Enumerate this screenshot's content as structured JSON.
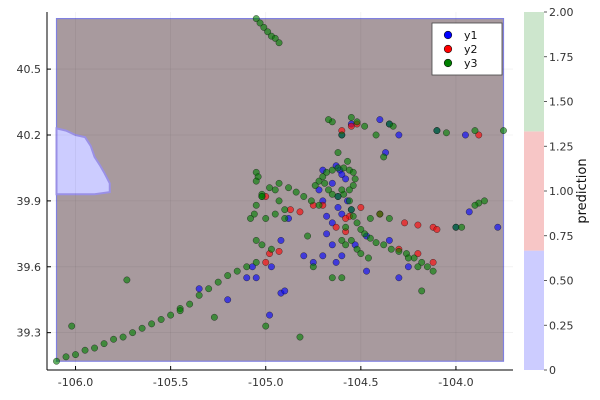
{
  "chart_data": {
    "type": "scatter",
    "title": "",
    "xlabel": "",
    "ylabel": "",
    "xlim": [
      -106.15,
      -103.7
    ],
    "ylim": [
      39.13,
      40.76
    ],
    "xticks": [
      -106.0,
      -105.5,
      -105.0,
      -104.5,
      -104.0
    ],
    "xtick_labels": [
      "-106.0",
      "-105.5",
      "-105.0",
      "-104.5",
      "-104.0"
    ],
    "yticks": [
      39.3,
      39.6,
      39.9,
      40.2,
      40.5
    ],
    "ytick_labels": [
      "39.3",
      "39.6",
      "39.9",
      "40.2",
      "40.5"
    ],
    "grid": true,
    "legend_position": "top-right",
    "prediction_region": {
      "bounds": {
        "x": [
          -106.1,
          -103.75
        ],
        "y": [
          39.17,
          40.73
        ]
      },
      "background_class": 0.7,
      "class0_region": [
        [
          -106.1,
          40.23
        ],
        [
          -106.05,
          40.22
        ],
        [
          -106.0,
          40.2
        ],
        [
          -105.95,
          40.19
        ],
        [
          -105.92,
          40.15
        ],
        [
          -105.9,
          40.1
        ],
        [
          -105.87,
          40.06
        ],
        [
          -105.85,
          40.03
        ],
        [
          -105.82,
          39.98
        ],
        [
          -105.82,
          39.94
        ],
        [
          -105.9,
          39.93
        ],
        [
          -106.0,
          39.93
        ],
        [
          -106.1,
          39.93
        ]
      ]
    },
    "colorbar": {
      "label": "prediction",
      "range": [
        0,
        2
      ],
      "ticks": [
        0,
        0.25,
        0.5,
        0.75,
        1.0,
        1.25,
        1.5,
        1.75,
        2.0
      ],
      "tick_labels": [
        "0",
        "0.25",
        "0.50",
        "0.75",
        "1.00",
        "1.25",
        "1.50",
        "1.75",
        "2.00"
      ],
      "bands": [
        {
          "from": 0,
          "to": 0.667,
          "color": "#ccccff"
        },
        {
          "from": 0.667,
          "to": 1.333,
          "color": "#f7c6c6"
        },
        {
          "from": 1.333,
          "to": 2.0,
          "color": "#cde6cd"
        }
      ]
    },
    "series": [
      {
        "name": "y1",
        "color": "#0000ff",
        "points": [
          [
            -104.63,
            40.06
          ],
          [
            -104.61,
            40.04
          ],
          [
            -104.6,
            40.02
          ],
          [
            -104.58,
            40.0
          ],
          [
            -104.65,
            39.98
          ],
          [
            -104.7,
            40.04
          ],
          [
            -104.72,
            39.95
          ],
          [
            -104.62,
            39.92
          ],
          [
            -104.57,
            39.9
          ],
          [
            -104.55,
            39.86
          ],
          [
            -104.6,
            39.84
          ],
          [
            -104.65,
            39.8
          ],
          [
            -104.68,
            39.75
          ],
          [
            -104.7,
            39.65
          ],
          [
            -104.4,
            40.27
          ],
          [
            -104.35,
            40.25
          ],
          [
            -104.37,
            40.12
          ],
          [
            -104.3,
            40.2
          ],
          [
            -104.55,
            40.25
          ],
          [
            -104.6,
            40.2
          ],
          [
            -104.1,
            40.22
          ],
          [
            -103.95,
            40.2
          ],
          [
            -104.0,
            39.78
          ],
          [
            -103.93,
            39.85
          ],
          [
            -103.78,
            39.78
          ],
          [
            -104.25,
            39.6
          ],
          [
            -104.3,
            39.55
          ],
          [
            -104.47,
            39.58
          ],
          [
            -104.65,
            39.7
          ],
          [
            -104.6,
            39.65
          ],
          [
            -104.8,
            39.65
          ],
          [
            -104.92,
            39.72
          ],
          [
            -104.88,
            39.82
          ],
          [
            -104.97,
            39.6
          ],
          [
            -104.92,
            39.48
          ],
          [
            -104.9,
            39.49
          ],
          [
            -104.98,
            39.38
          ],
          [
            -105.2,
            39.45
          ],
          [
            -105.35,
            39.5
          ],
          [
            -105.07,
            39.6
          ],
          [
            -105.1,
            39.55
          ],
          [
            -104.7,
            39.9
          ],
          [
            -104.62,
            39.87
          ],
          [
            -104.68,
            39.83
          ],
          [
            -104.75,
            39.62
          ],
          [
            -105.05,
            39.55
          ],
          [
            -104.47,
            39.74
          ],
          [
            -104.35,
            39.72
          ],
          [
            -104.63,
            39.62
          ],
          [
            -104.53,
            39.7
          ]
        ]
      },
      {
        "name": "y2",
        "color": "#ff0000",
        "points": [
          [
            -104.6,
            40.22
          ],
          [
            -104.55,
            40.24
          ],
          [
            -104.52,
            40.25
          ],
          [
            -104.56,
            39.83
          ],
          [
            -104.58,
            39.82
          ],
          [
            -104.63,
            39.78
          ],
          [
            -104.7,
            39.88
          ],
          [
            -104.4,
            39.84
          ],
          [
            -104.27,
            39.8
          ],
          [
            -104.2,
            39.79
          ],
          [
            -104.12,
            39.78
          ],
          [
            -104.1,
            39.77
          ],
          [
            -105.0,
            39.92
          ],
          [
            -104.87,
            39.86
          ],
          [
            -104.82,
            39.85
          ],
          [
            -104.58,
            39.76
          ],
          [
            -104.5,
            39.87
          ],
          [
            -104.3,
            39.68
          ],
          [
            -104.2,
            39.66
          ],
          [
            -104.12,
            39.62
          ],
          [
            -105.0,
            39.62
          ],
          [
            -104.98,
            39.66
          ],
          [
            -104.93,
            39.67
          ],
          [
            -103.88,
            40.2
          ],
          [
            -104.75,
            39.88
          ]
        ]
      },
      {
        "name": "y3",
        "color": "#008000",
        "points": [
          [
            -104.74,
            39.97
          ],
          [
            -104.72,
            39.99
          ],
          [
            -104.7,
            40.01
          ],
          [
            -104.68,
            40.03
          ],
          [
            -104.65,
            40.04
          ],
          [
            -104.62,
            40.05
          ],
          [
            -104.59,
            40.05
          ],
          [
            -104.56,
            40.04
          ],
          [
            -104.54,
            40.03
          ],
          [
            -104.53,
            40.0
          ],
          [
            -104.54,
            39.97
          ],
          [
            -104.56,
            39.95
          ],
          [
            -104.59,
            39.93
          ],
          [
            -104.62,
            39.92
          ],
          [
            -104.65,
            39.93
          ],
          [
            -104.67,
            39.95
          ],
          [
            -104.69,
            39.98
          ],
          [
            -104.56,
            39.9
          ],
          [
            -104.55,
            39.86
          ],
          [
            -104.54,
            39.83
          ],
          [
            -104.52,
            39.8
          ],
          [
            -104.5,
            39.77
          ],
          [
            -104.48,
            39.75
          ],
          [
            -104.45,
            39.73
          ],
          [
            -104.42,
            39.71
          ],
          [
            -104.38,
            39.7
          ],
          [
            -104.34,
            39.68
          ],
          [
            -104.3,
            39.67
          ],
          [
            -104.26,
            39.66
          ],
          [
            -104.22,
            39.64
          ],
          [
            -104.18,
            39.62
          ],
          [
            -104.15,
            39.6
          ],
          [
            -104.12,
            39.58
          ],
          [
            -104.55,
            39.72
          ],
          [
            -104.52,
            39.68
          ],
          [
            -104.5,
            39.66
          ],
          [
            -104.46,
            39.64
          ],
          [
            -104.6,
            39.72
          ],
          [
            -104.58,
            39.78
          ],
          [
            -104.72,
            39.88
          ],
          [
            -104.76,
            39.9
          ],
          [
            -104.8,
            39.92
          ],
          [
            -104.84,
            39.94
          ],
          [
            -104.88,
            39.96
          ],
          [
            -104.93,
            39.98
          ],
          [
            -104.98,
            39.96
          ],
          [
            -105.02,
            39.92
          ],
          [
            -105.05,
            39.88
          ],
          [
            -105.06,
            39.84
          ],
          [
            -105.08,
            39.82
          ],
          [
            -105.05,
            40.03
          ],
          [
            -105.04,
            40.01
          ],
          [
            -105.05,
            39.99
          ],
          [
            -105.02,
            39.93
          ],
          [
            -104.95,
            39.95
          ],
          [
            -104.93,
            39.9
          ],
          [
            -105.0,
            39.82
          ],
          [
            -104.95,
            39.84
          ],
          [
            -104.9,
            39.86
          ],
          [
            -105.05,
            39.72
          ],
          [
            -105.02,
            39.7
          ],
          [
            -104.97,
            39.68
          ],
          [
            -105.05,
            39.62
          ],
          [
            -105.1,
            39.6
          ],
          [
            -105.15,
            39.58
          ],
          [
            -105.2,
            39.56
          ],
          [
            -105.25,
            39.53
          ],
          [
            -105.3,
            39.5
          ],
          [
            -105.35,
            39.47
          ],
          [
            -105.4,
            39.43
          ],
          [
            -105.45,
            39.41
          ],
          [
            -105.5,
            39.38
          ],
          [
            -105.55,
            39.36
          ],
          [
            -105.6,
            39.34
          ],
          [
            -105.65,
            39.32
          ],
          [
            -105.7,
            39.3
          ],
          [
            -105.75,
            39.28
          ],
          [
            -105.8,
            39.27
          ],
          [
            -105.85,
            39.25
          ],
          [
            -105.9,
            39.23
          ],
          [
            -105.95,
            39.22
          ],
          [
            -106.0,
            39.2
          ],
          [
            -106.05,
            39.19
          ],
          [
            -106.1,
            39.17
          ],
          [
            -105.05,
            40.73
          ],
          [
            -105.03,
            40.71
          ],
          [
            -105.01,
            40.69
          ],
          [
            -104.99,
            40.67
          ],
          [
            -104.97,
            40.65
          ],
          [
            -104.95,
            40.64
          ],
          [
            -104.93,
            40.62
          ],
          [
            -105.73,
            39.54
          ],
          [
            -106.02,
            39.33
          ],
          [
            -105.45,
            39.4
          ],
          [
            -105.27,
            39.37
          ],
          [
            -105.0,
            39.33
          ],
          [
            -104.82,
            39.28
          ],
          [
            -104.65,
            39.55
          ],
          [
            -104.55,
            40.28
          ],
          [
            -104.52,
            40.26
          ],
          [
            -104.48,
            40.24
          ],
          [
            -104.42,
            40.2
          ],
          [
            -104.38,
            40.1
          ],
          [
            -104.33,
            40.24
          ],
          [
            -104.35,
            40.25
          ],
          [
            -104.1,
            40.22
          ],
          [
            -104.05,
            40.21
          ],
          [
            -103.9,
            40.22
          ],
          [
            -103.75,
            40.22
          ],
          [
            -104.6,
            40.2
          ],
          [
            -104.65,
            40.26
          ],
          [
            -104.67,
            40.27
          ],
          [
            -104.62,
            40.12
          ],
          [
            -104.57,
            40.08
          ],
          [
            -104.45,
            39.82
          ],
          [
            -104.4,
            39.84
          ],
          [
            -104.35,
            39.82
          ],
          [
            -104.0,
            39.78
          ],
          [
            -103.97,
            39.78
          ],
          [
            -103.85,
            39.9
          ],
          [
            -103.88,
            39.89
          ],
          [
            -103.9,
            39.88
          ],
          [
            -104.18,
            39.49
          ],
          [
            -104.25,
            39.64
          ],
          [
            -104.2,
            39.6
          ],
          [
            -105.02,
            39.92
          ],
          [
            -104.9,
            39.82
          ],
          [
            -104.75,
            39.6
          ],
          [
            -104.78,
            39.74
          ],
          [
            -104.6,
            39.95
          ],
          [
            -104.58,
            39.7
          ],
          [
            -104.6,
            39.55
          ]
        ]
      }
    ]
  },
  "legend": [
    {
      "name": "y1",
      "color": "#0000ff"
    },
    {
      "name": "y2",
      "color": "#ff0000"
    },
    {
      "name": "y3",
      "color": "#008000"
    }
  ]
}
